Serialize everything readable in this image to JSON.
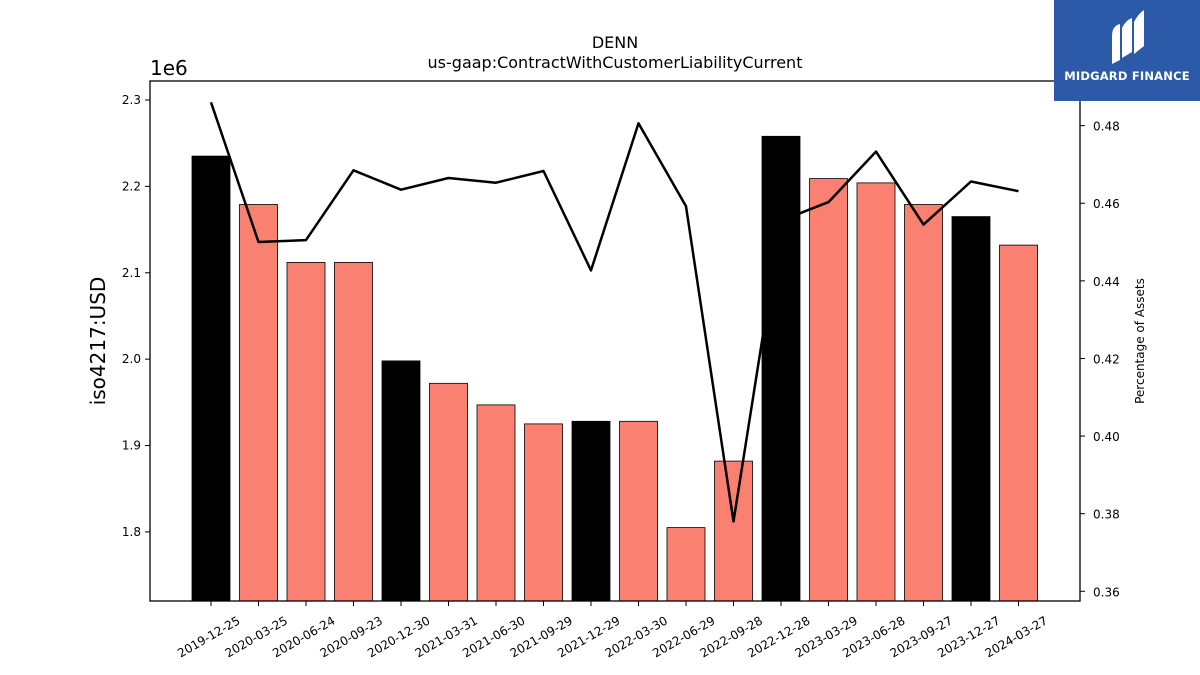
{
  "brand": {
    "name": "MIDGARD FINANCE",
    "bg_color": "#2d5aa8"
  },
  "chart_data": {
    "type": "bar",
    "title": "DENN",
    "subtitle": "us-gaap:ContractWithCustomerLiabilityCurrent",
    "ylabel": "iso4217:USD",
    "ylabel_right": "Percentage of Assets",
    "y_offset_label": "1e6",
    "ylim": [
      1.72,
      2.322
    ],
    "y_ticks": [
      1.8,
      1.9,
      2.0,
      2.1,
      2.2,
      2.3
    ],
    "y2lim": [
      0.3575,
      0.4915
    ],
    "y2_ticks": [
      0.36,
      0.38,
      0.4,
      0.42,
      0.44,
      0.46,
      0.48
    ],
    "categories": [
      "2019-12-25",
      "2020-03-25",
      "2020-06-24",
      "2020-09-23",
      "2020-12-30",
      "2021-03-31",
      "2021-06-30",
      "2021-09-29",
      "2021-12-29",
      "2022-03-30",
      "2022-06-29",
      "2022-09-28",
      "2022-12-28",
      "2023-03-29",
      "2023-06-28",
      "2023-09-27",
      "2023-12-27",
      "2024-03-27"
    ],
    "series": [
      {
        "type": "bar",
        "axis": "left",
        "values": [
          2.235,
          2.179,
          2.112,
          2.112,
          1.998,
          1.972,
          1.947,
          1.925,
          1.928,
          1.928,
          1.805,
          1.882,
          2.258,
          2.209,
          2.204,
          2.179,
          2.165,
          2.132
        ],
        "colors": [
          "#000000",
          "#fa8072",
          "#fa8072",
          "#fa8072",
          "#000000",
          "#fa8072",
          "#fa8072",
          "#fa8072",
          "#000000",
          "#fa8072",
          "#fa8072",
          "#fa8072",
          "#000000",
          "#fa8072",
          "#fa8072",
          "#fa8072",
          "#000000",
          "#fa8072"
        ]
      },
      {
        "type": "line",
        "axis": "right",
        "color": "#000000",
        "values": [
          0.486,
          0.45,
          0.4505,
          0.4685,
          0.4635,
          0.4665,
          0.4653,
          0.4683,
          0.4427,
          0.4806,
          0.4592,
          0.378,
          0.4555,
          0.4603,
          0.4733,
          0.4545,
          0.4656,
          0.4631
        ]
      }
    ],
    "legend": "none",
    "grid": false
  }
}
